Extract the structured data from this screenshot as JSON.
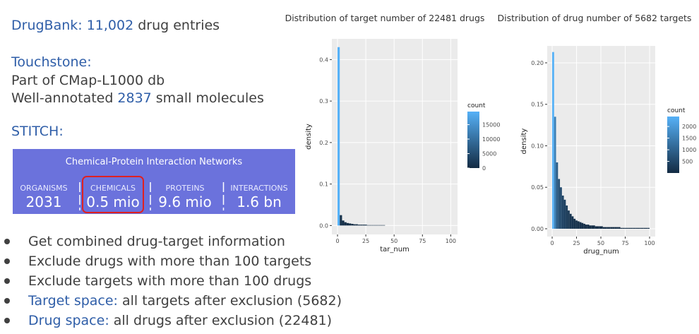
{
  "drugbank": {
    "lead": "DrugBank: 11,002",
    "rest": "drug entries"
  },
  "touchstone": {
    "heading": "Touchstone:",
    "line1": "Part of CMap-L1000 db",
    "line2_pre": "Well-annotated",
    "line2_num": "2837",
    "line2_post": "small molecules"
  },
  "stitch": {
    "heading": "STITCH:",
    "banner_title": "Chemical-Protein Interaction Networks",
    "stats": [
      {
        "label": "ORGANISMS",
        "value": "2031"
      },
      {
        "label": "CHEMICALS",
        "value": "0.5 mio"
      },
      {
        "label": "PROTEINS",
        "value": "9.6 mio"
      },
      {
        "label": "INTERACTIONS",
        "value": "1.6 bn"
      }
    ]
  },
  "bullets": [
    {
      "text": "Get combined drug-target information"
    },
    {
      "text": "Exclude drugs with more than 100 targets"
    },
    {
      "text": "Exclude targets with more than 100 drugs"
    },
    {
      "term": "Target space:",
      "text": "all targets after exclusion (5682)"
    },
    {
      "term": "Drug space:",
      "text": "all drugs after exclusion (22481)"
    }
  ],
  "chart_data": [
    {
      "type": "histogram",
      "title": "Distribution of target number of 22481 drugs",
      "x_label": "tar_num",
      "y_label": "density",
      "bins": [
        0,
        2,
        4,
        6,
        8,
        10,
        12,
        14,
        16,
        18,
        20,
        22,
        24,
        26,
        28,
        30,
        32,
        34,
        36,
        38,
        40,
        42,
        44,
        46,
        48,
        50,
        52,
        54,
        56,
        58,
        60,
        62,
        64,
        66,
        68,
        70,
        72,
        74,
        76,
        78,
        80,
        82,
        84,
        86,
        88,
        90,
        92,
        94,
        96,
        98,
        100
      ],
      "values": [
        0.43,
        0.025,
        0.012,
        0.008,
        0.006,
        0.005,
        0.004,
        0.003,
        0.003,
        0.002,
        0.002,
        0.002,
        0.002,
        0.001,
        0.001,
        0.001,
        0.001,
        0.001,
        0.001,
        0.001,
        0.001,
        0,
        0,
        0,
        0,
        0,
        0,
        0,
        0,
        0,
        0,
        0,
        0,
        0,
        0,
        0,
        0,
        0,
        0,
        0,
        0,
        0,
        0,
        0,
        0,
        0,
        0,
        0,
        0,
        0
      ],
      "xlim": [
        -5,
        106
      ],
      "ylim": [
        -0.0215,
        0.45
      ],
      "xticks": [
        0,
        25,
        50,
        75,
        100
      ],
      "yticks": [
        {
          "value": 0,
          "label": "0.0"
        },
        0.1,
        0.2,
        0.3,
        0.4
      ],
      "grid": true,
      "legend": {
        "title": "count",
        "lim": [
          0,
          19500
        ],
        "ticks": [
          0,
          5000,
          10000,
          15000
        ],
        "low": "#132B43",
        "high": "#56B1F7"
      }
    },
    {
      "type": "histogram",
      "title": "Distribution of drug number of 5682 targets",
      "x_label": "drug_num",
      "y_label": "density",
      "bins": [
        0,
        2,
        4,
        6,
        8,
        10,
        12,
        14,
        16,
        18,
        20,
        22,
        24,
        26,
        28,
        30,
        32,
        34,
        36,
        38,
        40,
        42,
        44,
        46,
        48,
        50,
        52,
        54,
        56,
        58,
        60,
        62,
        64,
        66,
        68,
        70,
        72,
        74,
        76,
        78,
        80,
        82,
        84,
        86,
        88,
        90,
        92,
        94,
        96,
        98,
        100
      ],
      "values": [
        0.213,
        0.135,
        0.08,
        0.06,
        0.05,
        0.04,
        0.035,
        0.028,
        0.022,
        0.018,
        0.015,
        0.012,
        0.01,
        0.009,
        0.008,
        0.007,
        0.006,
        0.005,
        0.005,
        0.004,
        0.004,
        0.004,
        0.003,
        0.003,
        0.003,
        0.003,
        0.002,
        0.002,
        0.002,
        0.002,
        0.002,
        0.002,
        0.002,
        0.002,
        0.002,
        0.001,
        0.001,
        0.001,
        0.001,
        0.001,
        0.001,
        0.001,
        0.001,
        0.001,
        0.001,
        0.001,
        0.001,
        0.001,
        0.001,
        0.001
      ],
      "xlim": [
        -5.1,
        105.8
      ],
      "ylim": [
        -0.0094,
        0.2204
      ],
      "xticks": [
        0,
        25,
        50,
        75,
        100
      ],
      "yticks": [
        {
          "value": 0,
          "label": "0.00"
        },
        {
          "value": 0.05,
          "label": "0.05"
        },
        {
          "value": 0.1,
          "label": "0.10"
        },
        {
          "value": 0.15,
          "label": "0.15"
        },
        {
          "value": 0.2,
          "label": "0.20"
        }
      ],
      "grid": true,
      "legend": {
        "title": "count",
        "lim": [
          0,
          2430
        ],
        "ticks": [
          500,
          1000,
          1500,
          2000
        ],
        "low": "#132B43",
        "high": "#56B1F7"
      }
    }
  ]
}
